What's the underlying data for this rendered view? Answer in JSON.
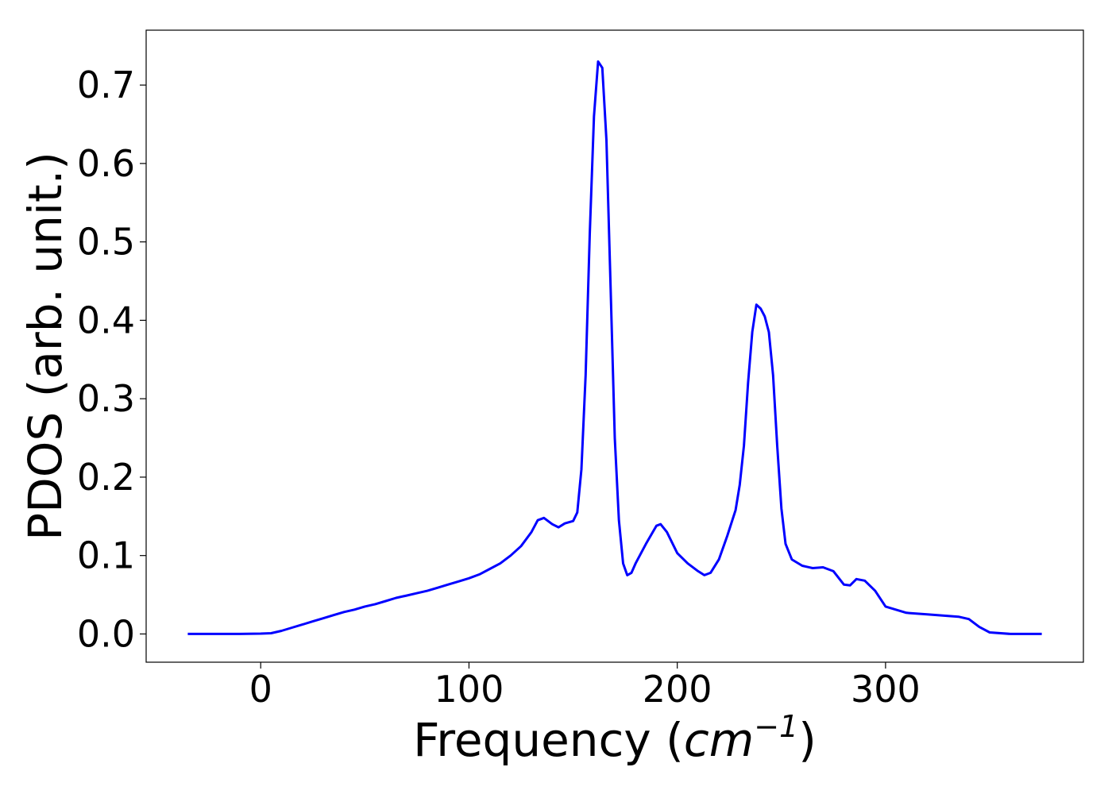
{
  "chart_data": {
    "type": "line",
    "xlabel": "Frequency (cm⁻¹)",
    "xlabel_main": "Frequency (",
    "xlabel_unit": "cm",
    "xlabel_exp": "−1",
    "xlabel_close": ")",
    "ylabel": "PDOS (arb. unit.)",
    "xlim": [
      -55,
      395
    ],
    "ylim": [
      -0.036,
      0.77
    ],
    "x_ticks": [
      0,
      100,
      200,
      300
    ],
    "x_tick_labels": [
      "0",
      "100",
      "200",
      "300"
    ],
    "y_ticks": [
      0.0,
      0.1,
      0.2,
      0.3,
      0.4,
      0.5,
      0.6,
      0.7
    ],
    "y_tick_labels": [
      "0.0",
      "0.1",
      "0.2",
      "0.3",
      "0.4",
      "0.5",
      "0.6",
      "0.7"
    ],
    "grid": false,
    "legend": "none",
    "series": [
      {
        "color": "#0000ff",
        "x": [
          -35,
          -20,
          -10,
          0,
          5,
          10,
          15,
          20,
          25,
          30,
          35,
          40,
          45,
          50,
          55,
          60,
          65,
          70,
          75,
          80,
          85,
          90,
          95,
          100,
          105,
          110,
          115,
          120,
          125,
          130,
          133,
          136,
          140,
          143,
          146,
          150,
          152,
          154,
          156,
          158,
          160,
          162,
          164,
          166,
          168,
          170,
          172,
          174,
          176,
          178,
          180,
          185,
          190,
          192,
          195,
          200,
          205,
          210,
          213,
          216,
          220,
          224,
          228,
          230,
          232,
          234,
          236,
          238,
          240,
          242,
          244,
          246,
          248,
          250,
          252,
          255,
          260,
          265,
          270,
          275,
          280,
          283,
          286,
          290,
          295,
          300,
          310,
          320,
          330,
          335,
          340,
          345,
          350,
          360,
          375
        ],
        "y": [
          0.0,
          0.0,
          0.0,
          0.0005,
          0.001,
          0.004,
          0.008,
          0.012,
          0.016,
          0.02,
          0.024,
          0.028,
          0.031,
          0.035,
          0.038,
          0.042,
          0.046,
          0.049,
          0.052,
          0.055,
          0.059,
          0.063,
          0.067,
          0.071,
          0.076,
          0.083,
          0.09,
          0.1,
          0.112,
          0.13,
          0.145,
          0.148,
          0.14,
          0.136,
          0.141,
          0.144,
          0.155,
          0.21,
          0.33,
          0.51,
          0.66,
          0.73,
          0.722,
          0.63,
          0.44,
          0.25,
          0.145,
          0.09,
          0.075,
          0.078,
          0.09,
          0.115,
          0.138,
          0.14,
          0.13,
          0.103,
          0.09,
          0.08,
          0.075,
          0.078,
          0.095,
          0.125,
          0.158,
          0.19,
          0.24,
          0.32,
          0.385,
          0.42,
          0.415,
          0.405,
          0.385,
          0.33,
          0.24,
          0.16,
          0.115,
          0.095,
          0.087,
          0.084,
          0.085,
          0.08,
          0.063,
          0.062,
          0.07,
          0.068,
          0.055,
          0.035,
          0.027,
          0.025,
          0.023,
          0.022,
          0.019,
          0.009,
          0.002,
          0.0,
          0.0
        ]
      }
    ]
  }
}
